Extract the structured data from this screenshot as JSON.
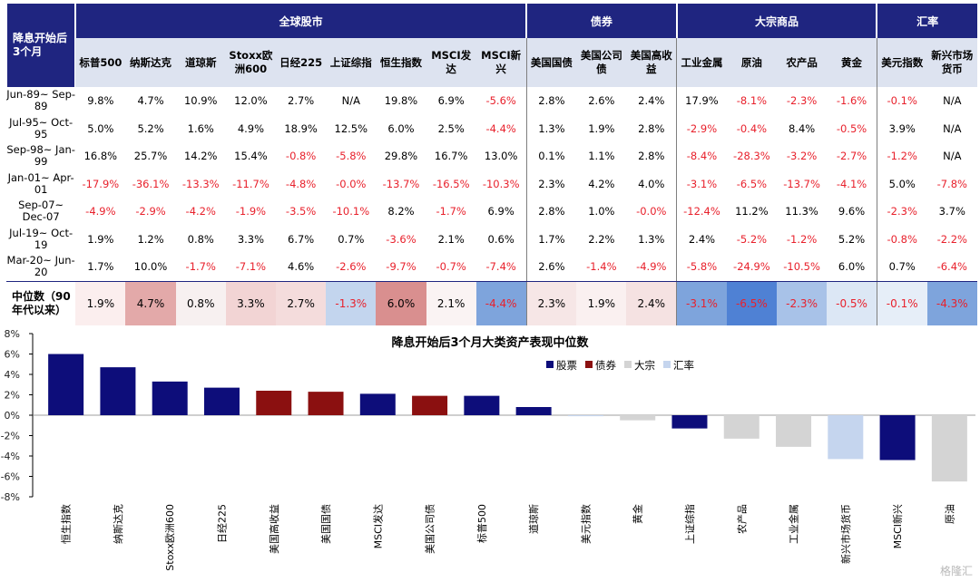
{
  "table": {
    "corner_label": "降息开始后3个月",
    "groups": [
      {
        "label": "全球股市",
        "span": 9
      },
      {
        "label": "债券",
        "span": 3
      },
      {
        "label": "大宗商品",
        "span": 4
      },
      {
        "label": "汇率",
        "span": 2
      }
    ],
    "columns": [
      "标普500",
      "纳斯达克",
      "道琼斯",
      "Stoxx欧洲600",
      "日经225",
      "上证综指",
      "恒生指数",
      "MSCI发达",
      "MSCI新兴",
      "美国国债",
      "美国公司债",
      "美国高收益",
      "工业金属",
      "原油",
      "农产品",
      "黄金",
      "美元指数",
      "新兴市场货币"
    ],
    "rows": [
      {
        "period": "Jun-89~ Sep-89",
        "values": [
          "9.8%",
          "4.7%",
          "10.9%",
          "12.0%",
          "2.7%",
          "N/A",
          "19.8%",
          "6.9%",
          "-5.6%",
          "2.8%",
          "2.6%",
          "2.4%",
          "17.9%",
          "-8.1%",
          "-2.3%",
          "-1.6%",
          "-0.1%",
          "N/A"
        ]
      },
      {
        "period": "Jul-95~ Oct-95",
        "values": [
          "5.0%",
          "5.2%",
          "1.6%",
          "4.9%",
          "18.9%",
          "12.5%",
          "6.0%",
          "2.5%",
          "-4.4%",
          "1.3%",
          "1.9%",
          "2.8%",
          "-2.9%",
          "-0.4%",
          "8.4%",
          "-0.5%",
          "3.9%",
          "N/A"
        ]
      },
      {
        "period": "Sep-98~ Jan-99",
        "values": [
          "16.8%",
          "25.7%",
          "14.2%",
          "15.4%",
          "-0.8%",
          "-5.8%",
          "29.8%",
          "16.7%",
          "13.0%",
          "0.1%",
          "1.1%",
          "2.8%",
          "-8.4%",
          "-28.3%",
          "-3.2%",
          "-2.7%",
          "-1.2%",
          "N/A"
        ]
      },
      {
        "period": "Jan-01~ Apr-01",
        "values": [
          "-17.9%",
          "-36.1%",
          "-13.3%",
          "-11.7%",
          "-4.8%",
          "-0.0%",
          "-13.7%",
          "-16.5%",
          "-10.3%",
          "2.3%",
          "4.2%",
          "4.0%",
          "-3.1%",
          "-6.5%",
          "-13.7%",
          "-4.1%",
          "5.0%",
          "-7.8%"
        ]
      },
      {
        "period": "Sep-07~ Dec-07",
        "values": [
          "-4.9%",
          "-2.9%",
          "-4.2%",
          "-1.9%",
          "-3.5%",
          "-10.1%",
          "8.2%",
          "-1.7%",
          "6.9%",
          "2.8%",
          "1.0%",
          "-0.0%",
          "-12.4%",
          "11.2%",
          "11.3%",
          "9.6%",
          "-2.3%",
          "3.7%"
        ]
      },
      {
        "period": "Jul-19~ Oct-19",
        "values": [
          "1.9%",
          "1.2%",
          "0.8%",
          "3.3%",
          "6.7%",
          "0.7%",
          "-3.6%",
          "2.1%",
          "0.6%",
          "1.7%",
          "2.2%",
          "1.3%",
          "2.4%",
          "-5.2%",
          "-1.2%",
          "5.2%",
          "-0.8%",
          "-2.2%"
        ]
      },
      {
        "period": "Mar-20~ Jun-20",
        "values": [
          "1.7%",
          "10.0%",
          "-1.7%",
          "-7.1%",
          "4.6%",
          "-2.6%",
          "-9.7%",
          "-0.7%",
          "-7.4%",
          "2.6%",
          "-1.4%",
          "-4.9%",
          "-5.8%",
          "-24.9%",
          "-10.5%",
          "6.0%",
          "0.7%",
          "-6.4%"
        ]
      }
    ],
    "median": {
      "label": "中位数（90年代以来）",
      "values": [
        "1.9%",
        "4.7%",
        "0.8%",
        "3.3%",
        "2.7%",
        "-1.3%",
        "6.0%",
        "2.1%",
        "-4.4%",
        "2.3%",
        "1.9%",
        "2.4%",
        "-3.1%",
        "-6.5%",
        "-2.3%",
        "-0.5%",
        "-0.1%",
        "-4.3%"
      ],
      "cell_colors": [
        "#fbeeee",
        "#e3a9a9",
        "#f7f0f0",
        "#f2d4d4",
        "#f4dcdc",
        "#c3d5ee",
        "#d98f8f",
        "#faf3f3",
        "#7ea4dc",
        "#f6e6e6",
        "#faf0f0",
        "#f5e2e2",
        "#7ea4dc",
        "#4f81d4",
        "#a8c2e8",
        "#dce7f5",
        "#e6eef8",
        "#7ea4dc"
      ]
    }
  },
  "chart_data": {
    "type": "bar",
    "title": "降息开始后3个月大类资产表现中位数",
    "categories": [
      "恒生指数",
      "纳斯达克",
      "Stoxx欧洲600",
      "日经225",
      "美国高收益",
      "美国国债",
      "MSCI发达",
      "美国公司债",
      "标普500",
      "道琼斯",
      "美元指数",
      "黄金",
      "上证综指",
      "农产品",
      "工业金属",
      "新兴市场货币",
      "MSCI新兴",
      "原油"
    ],
    "values": [
      6.0,
      4.7,
      3.3,
      2.7,
      2.4,
      2.3,
      2.1,
      1.9,
      1.9,
      0.8,
      -0.1,
      -0.5,
      -1.3,
      -2.3,
      -3.1,
      -4.3,
      -4.4,
      -6.5
    ],
    "asset_class": [
      "股票",
      "股票",
      "股票",
      "股票",
      "债券",
      "债券",
      "股票",
      "债券",
      "股票",
      "股票",
      "汇率",
      "大宗",
      "股票",
      "大宗",
      "大宗",
      "汇率",
      "股票",
      "大宗"
    ],
    "legend": [
      {
        "name": "股票",
        "color": "#0d0d7a"
      },
      {
        "name": "债券",
        "color": "#8b1010"
      },
      {
        "name": "大宗",
        "color": "#d4d4d4"
      },
      {
        "name": "汇率",
        "color": "#c5d5ee"
      }
    ],
    "y_ticks": [
      "8%",
      "6%",
      "4%",
      "2%",
      "0%",
      "-2%",
      "-4%",
      "-6%",
      "-8%"
    ],
    "ylim": [
      -8,
      8
    ],
    "legend_position": "top-right"
  },
  "watermark": "格隆汇"
}
